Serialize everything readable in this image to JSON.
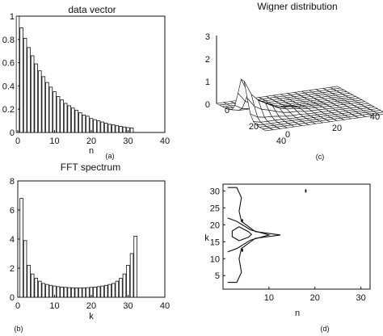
{
  "chart_data": [
    {
      "id": "a",
      "type": "bar",
      "title": "data vector",
      "xlabel": "n",
      "panel_label": "(a)",
      "xlim": [
        0,
        40
      ],
      "ylim": [
        0,
        1
      ],
      "xticks": [
        0,
        10,
        20,
        30,
        40
      ],
      "yticks": [
        0,
        0.2,
        0.4,
        0.6,
        0.8,
        1
      ],
      "ytick_labels": [
        "0",
        "0.2",
        "0.4",
        "0.6",
        "0.8",
        "1"
      ],
      "x": [
        0,
        1,
        2,
        3,
        4,
        5,
        6,
        7,
        8,
        9,
        10,
        11,
        12,
        13,
        14,
        15,
        16,
        17,
        18,
        19,
        20,
        21,
        22,
        23,
        24,
        25,
        26,
        27,
        28,
        29,
        30,
        31
      ],
      "values": [
        1.0,
        0.9,
        0.81,
        0.73,
        0.66,
        0.59,
        0.53,
        0.48,
        0.43,
        0.39,
        0.35,
        0.31,
        0.28,
        0.25,
        0.23,
        0.21,
        0.19,
        0.17,
        0.15,
        0.14,
        0.12,
        0.11,
        0.1,
        0.09,
        0.08,
        0.07,
        0.065,
        0.058,
        0.052,
        0.047,
        0.042,
        0.038
      ]
    },
    {
      "id": "b",
      "type": "bar",
      "title": "FFT spectrum",
      "xlabel": "k",
      "panel_label": "(b)",
      "xlim": [
        0,
        40
      ],
      "ylim": [
        0,
        8
      ],
      "xticks": [
        0,
        10,
        20,
        30,
        40
      ],
      "yticks": [
        0,
        2,
        4,
        6,
        8
      ],
      "ytick_labels": [
        "0",
        "2",
        "4",
        "6",
        "8"
      ],
      "x": [
        1,
        2,
        3,
        4,
        5,
        6,
        7,
        8,
        9,
        10,
        11,
        12,
        13,
        14,
        15,
        16,
        17,
        18,
        19,
        20,
        21,
        22,
        23,
        24,
        25,
        26,
        27,
        28,
        29,
        30,
        31,
        32
      ],
      "values": [
        6.8,
        3.9,
        2.2,
        1.6,
        1.3,
        1.1,
        0.95,
        0.88,
        0.82,
        0.77,
        0.73,
        0.7,
        0.68,
        0.66,
        0.65,
        0.64,
        0.64,
        0.65,
        0.66,
        0.68,
        0.7,
        0.73,
        0.77,
        0.82,
        0.88,
        0.95,
        1.1,
        1.3,
        1.6,
        2.2,
        3.0,
        4.2
      ]
    },
    {
      "id": "c",
      "type": "surface",
      "title": "Wigner distribution",
      "panel_label": "(c)",
      "zlim": [
        0,
        3
      ],
      "zticks": [
        "0",
        "1",
        "2",
        "3"
      ],
      "left_axis_ticks": [
        "0",
        "20",
        "40"
      ],
      "right_axis_ticks": [
        "0",
        "20",
        "40"
      ],
      "peak_value": 1.6,
      "peak_position": {
        "n": 2,
        "k": 17
      }
    },
    {
      "id": "d",
      "type": "contour",
      "xlabel": "n",
      "ylabel": "k",
      "panel_label": "(d)",
      "xlim": [
        0,
        32
      ],
      "ylim": [
        1,
        32
      ],
      "xticks": [
        10,
        20,
        30
      ],
      "yticks": [
        5,
        10,
        15,
        20,
        25,
        30
      ],
      "contours": [
        {
          "level": "outer",
          "points": [
            [
              1,
              31
            ],
            [
              3,
              31
            ],
            [
              4,
              28
            ],
            [
              3.5,
              24
            ],
            [
              4,
              21
            ],
            [
              7,
              18
            ],
            [
              12.5,
              17
            ],
            [
              7,
              16
            ],
            [
              4,
              13
            ],
            [
              3.5,
              10
            ],
            [
              4,
              6
            ],
            [
              3,
              3
            ],
            [
              1,
              3
            ]
          ]
        },
        {
          "level": "middle",
          "points": [
            [
              1,
              22
            ],
            [
              3,
              21
            ],
            [
              6,
              18.5
            ],
            [
              10,
              17
            ],
            [
              6,
              15.5
            ],
            [
              3,
              13
            ],
            [
              1,
              12
            ]
          ]
        },
        {
          "level": "inner",
          "points": [
            [
              2,
              18.2
            ],
            [
              3.5,
              19.4
            ],
            [
              5.5,
              18
            ],
            [
              6.2,
              17.2
            ],
            [
              5.5,
              16.3
            ],
            [
              3.5,
              15.3
            ],
            [
              2,
              16.5
            ],
            [
              2,
              18.2
            ]
          ]
        }
      ],
      "blobs": [
        [
          4.2,
          21.2
        ],
        [
          4.2,
          12.5
        ],
        [
          18,
          30
        ]
      ]
    }
  ]
}
